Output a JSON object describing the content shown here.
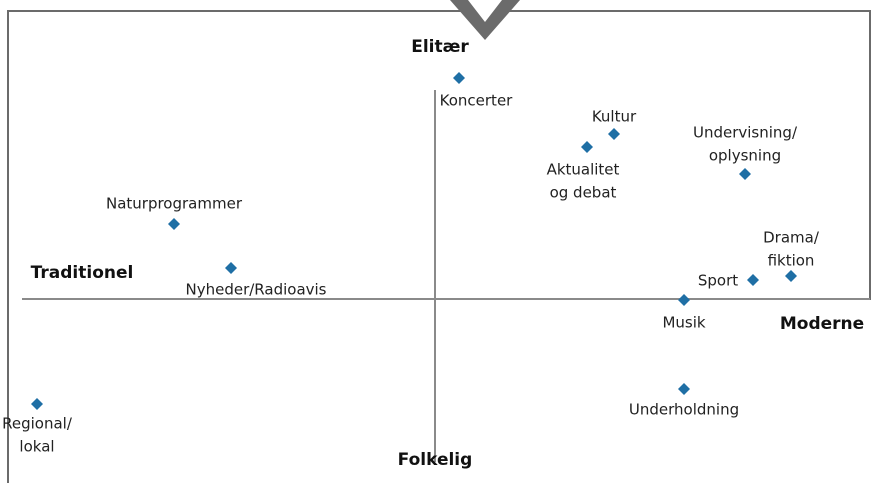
{
  "axes": {
    "top": "Elitær",
    "bottom": "Folkelig",
    "left": "Traditionel",
    "right": "Moderne"
  },
  "items": [
    {
      "lines": [
        "Koncerter"
      ]
    },
    {
      "lines": [
        "Kultur"
      ]
    },
    {
      "lines": [
        "Aktualitet",
        "og debat"
      ]
    },
    {
      "lines": [
        "Undervisning/",
        "oplysning"
      ]
    },
    {
      "lines": [
        "Naturprogrammer"
      ]
    },
    {
      "lines": [
        "Nyheder/Radioavis"
      ]
    },
    {
      "lines": [
        "Drama/",
        "fiktion"
      ]
    },
    {
      "lines": [
        "Sport"
      ]
    },
    {
      "lines": [
        "Musik"
      ]
    },
    {
      "lines": [
        "Underholdning"
      ]
    },
    {
      "lines": [
        "Regional/",
        "lokal"
      ]
    }
  ]
}
